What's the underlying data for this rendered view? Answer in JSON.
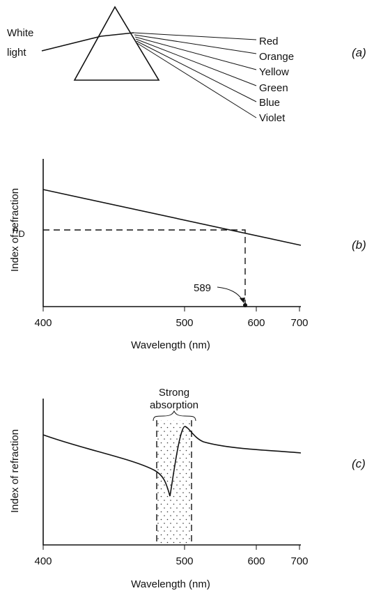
{
  "panel_a": {
    "tag": "(a)",
    "source": [
      "White",
      "light"
    ],
    "colors": [
      "Red",
      "Orange",
      "Yellow",
      "Green",
      "Blue",
      "Violet"
    ]
  },
  "panel_b": {
    "tag": "(b)",
    "y_label": "Index of refraction",
    "x_label": "Wavelength (nm)",
    "x_ticks": [
      "400",
      "500",
      "600",
      "700"
    ],
    "marker": "n",
    "marker_sub": "D",
    "point_label": "589"
  },
  "panel_c": {
    "tag": "(c)",
    "y_label": "Index of refraction",
    "x_label": "Wavelength (nm)",
    "x_ticks": [
      "400",
      "500",
      "600",
      "700"
    ],
    "region_label": [
      "Strong",
      "absorption"
    ]
  }
}
